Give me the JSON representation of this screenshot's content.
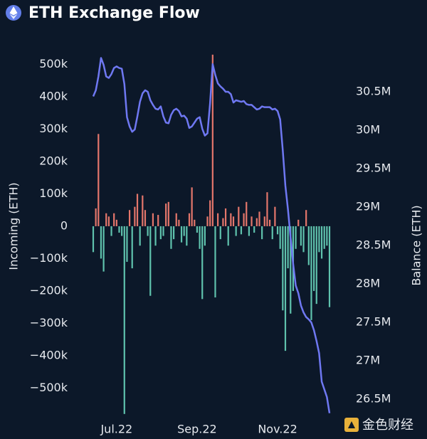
{
  "chart_data": {
    "type": "combo",
    "title": "ETH Exchange Flow",
    "ylabel": "Incoming (ETH)",
    "y2label": "Balance (ETH)",
    "watermark": "金色财经",
    "categories": [
      null,
      null,
      null,
      null,
      null,
      null,
      null,
      null,
      null,
      "Jul.22",
      null,
      null,
      null,
      null,
      null,
      null,
      null,
      null,
      null,
      null,
      null,
      null,
      null,
      null,
      null,
      null,
      null,
      null,
      null,
      null,
      null,
      null,
      null,
      null,
      null,
      null,
      null,
      null,
      null,
      null,
      "Sep.22",
      null,
      null,
      null,
      null,
      null,
      null,
      null,
      null,
      null,
      null,
      null,
      null,
      null,
      null,
      null,
      null,
      null,
      null,
      null,
      null,
      null,
      null,
      null,
      null,
      null,
      null,
      null,
      null,
      null,
      null,
      "Nov.22",
      null,
      null,
      null,
      null,
      null,
      null,
      null,
      null,
      null,
      null,
      null,
      null,
      null,
      null,
      null,
      null,
      null,
      null,
      null,
      null
    ],
    "ylim": [
      -587000,
      534000
    ],
    "yticks": [
      {
        "value": 500000,
        "label": "500k"
      },
      {
        "value": 400000,
        "label": "400k"
      },
      {
        "value": 300000,
        "label": "300k"
      },
      {
        "value": 200000,
        "label": "200k"
      },
      {
        "value": 100000,
        "label": "100k"
      },
      0,
      {
        "value": -100000,
        "label": "−100k"
      },
      {
        "value": -200000,
        "label": "−200k"
      },
      {
        "value": -300000,
        "label": "−300k"
      },
      {
        "value": -400000,
        "label": "−400k"
      },
      {
        "value": -500000,
        "label": "−500k"
      }
    ],
    "y2lim": [
      26280000,
      31000000
    ],
    "y2ticks": [
      {
        "value": 30500000,
        "label": "30.5M"
      },
      {
        "value": 30000000,
        "label": "30M"
      },
      {
        "value": 29500000,
        "label": "29.5M"
      },
      {
        "value": 29000000,
        "label": "29M"
      },
      {
        "value": 28500000,
        "label": "28.5M"
      },
      {
        "value": 28000000,
        "label": "28M"
      },
      {
        "value": 27500000,
        "label": "27.5M"
      },
      {
        "value": 27000000,
        "label": "27M"
      },
      {
        "value": 26500000,
        "label": "26.5M"
      }
    ],
    "grid": false,
    "series": [
      {
        "type": "bar",
        "colors": {
          "positive": "#e4766b",
          "negative": "#5fc2ad"
        },
        "values": [
          -80000,
          55000,
          285000,
          -100000,
          -140000,
          40000,
          30000,
          -30000,
          40000,
          20000,
          -20000,
          -30000,
          -580000,
          -110000,
          50000,
          -130000,
          60000,
          100000,
          -60000,
          95000,
          50000,
          -30000,
          -215000,
          40000,
          -60000,
          35000,
          -40000,
          -30000,
          70000,
          75000,
          -70000,
          -40000,
          40000,
          20000,
          -50000,
          -30000,
          -60000,
          40000,
          120000,
          20000,
          -20000,
          -70000,
          -225000,
          -60000,
          30000,
          80000,
          530000,
          -220000,
          40000,
          -40000,
          25000,
          55000,
          -60000,
          40000,
          30000,
          -30000,
          60000,
          -25000,
          40000,
          75000,
          -30000,
          30000,
          -20000,
          25000,
          45000,
          -40000,
          30000,
          105000,
          20000,
          -40000,
          60000,
          -25000,
          -70000,
          -260000,
          -385000,
          -130000,
          -270000,
          -200000,
          -70000,
          20000,
          -60000,
          -80000,
          50000,
          -120000,
          -290000,
          -200000,
          -240000,
          -80000,
          -100000,
          -70000,
          -60000,
          -250000
        ]
      },
      {
        "type": "line",
        "axis": "y2",
        "color": "#6f78f2",
        "values": [
          30440000,
          30520000,
          30700000,
          30940000,
          30850000,
          30700000,
          30680000,
          30730000,
          30810000,
          30830000,
          30810000,
          30800000,
          30600000,
          30170000,
          30050000,
          29980000,
          30010000,
          30180000,
          30370000,
          30480000,
          30520000,
          30500000,
          30390000,
          30330000,
          30280000,
          30270000,
          30310000,
          30180000,
          30100000,
          30090000,
          30200000,
          30260000,
          30280000,
          30250000,
          30180000,
          30190000,
          30150000,
          30030000,
          30050000,
          30100000,
          30150000,
          30170000,
          30020000,
          29930000,
          29960000,
          30350000,
          30860000,
          30720000,
          30610000,
          30570000,
          30540000,
          30500000,
          30500000,
          30470000,
          30360000,
          30390000,
          30380000,
          30370000,
          30380000,
          30340000,
          30330000,
          30330000,
          30300000,
          30270000,
          30280000,
          30310000,
          30300000,
          30300000,
          30300000,
          30270000,
          30280000,
          30250000,
          30140000,
          29740000,
          29280000,
          28970000,
          28610000,
          28260000,
          27980000,
          27880000,
          27720000,
          27630000,
          27570000,
          27540000,
          27500000,
          27400000,
          27260000,
          27100000,
          26730000,
          26630000,
          26530000,
          26320000
        ]
      }
    ]
  }
}
